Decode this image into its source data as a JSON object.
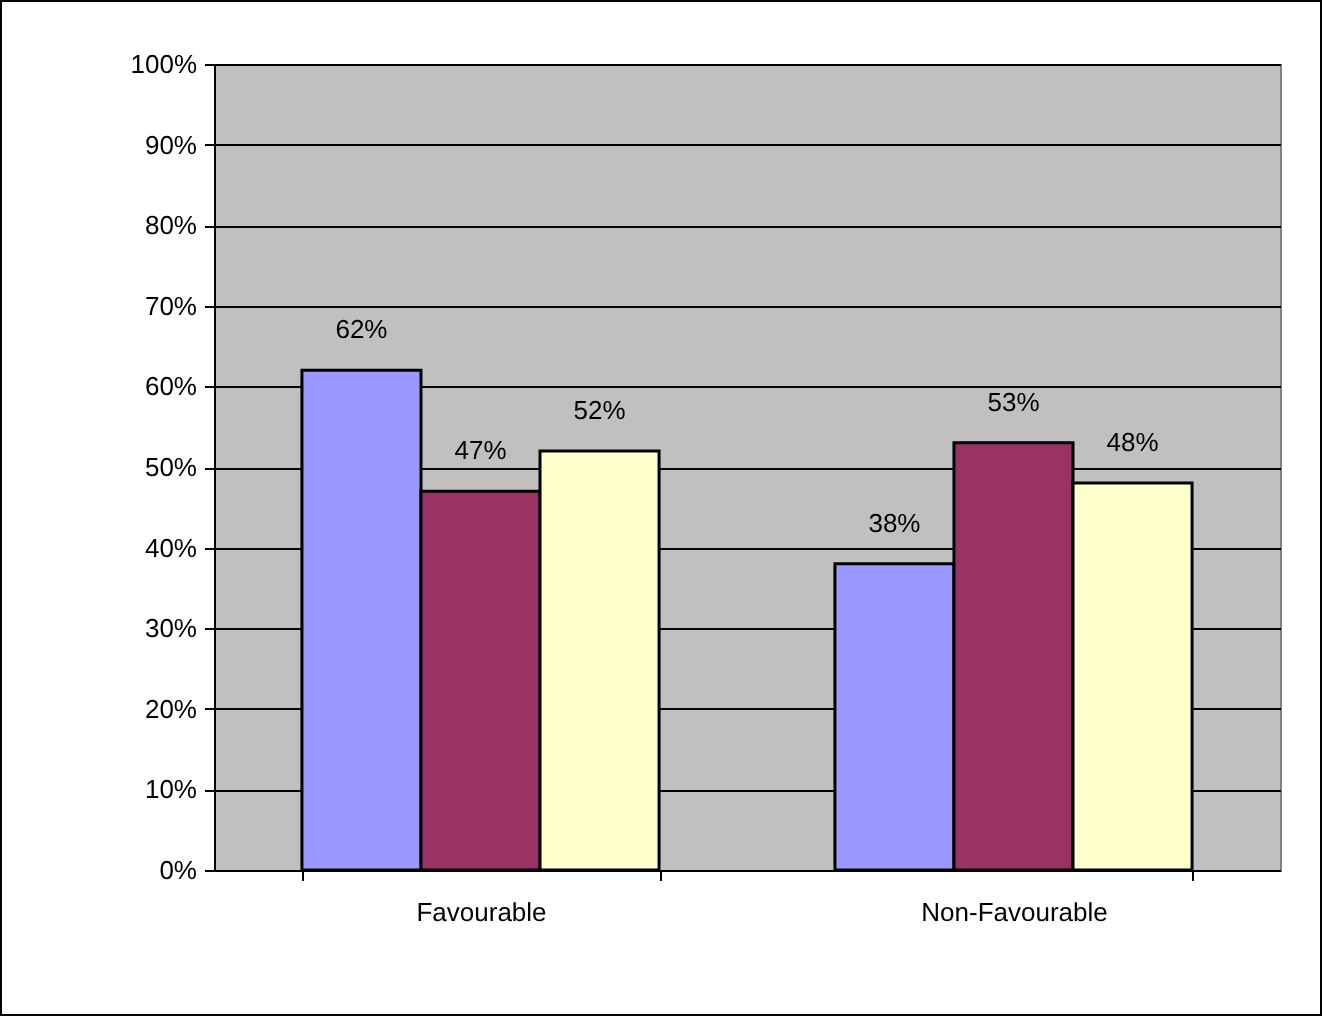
{
  "chart_data": {
    "type": "bar",
    "categories": [
      "Favourable",
      "Non-Favourable"
    ],
    "series": [
      {
        "color": "#9999ff",
        "values": [
          62,
          38
        ],
        "value_labels": [
          "62%",
          "38%"
        ]
      },
      {
        "color": "#993366",
        "values": [
          47,
          53
        ],
        "value_labels": [
          "47%",
          "53%"
        ]
      },
      {
        "color": "#ffffcc",
        "values": [
          52,
          48
        ],
        "value_labels": [
          "52%",
          "48%"
        ]
      }
    ],
    "ylim": [
      0,
      100
    ],
    "yticks": [
      {
        "value": 0,
        "label": "0%"
      },
      {
        "value": 10,
        "label": "10%"
      },
      {
        "value": 20,
        "label": "20%"
      },
      {
        "value": 30,
        "label": "30%"
      },
      {
        "value": 40,
        "label": "40%"
      },
      {
        "value": 50,
        "label": "50%"
      },
      {
        "value": 60,
        "label": "60%"
      },
      {
        "value": 70,
        "label": "70%"
      },
      {
        "value": 80,
        "label": "80%"
      },
      {
        "value": 90,
        "label": "90%"
      },
      {
        "value": 100,
        "label": "100%"
      }
    ],
    "grid": "y",
    "legend": false
  }
}
